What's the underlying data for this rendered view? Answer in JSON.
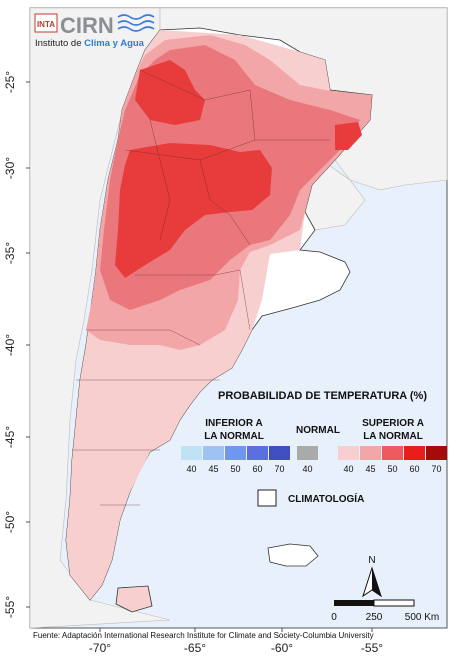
{
  "logo": {
    "inta": "INTA",
    "cirn": "CIRN",
    "subtitle_prefix": "Instituto de ",
    "subtitle_highlight": "Clima y Agua"
  },
  "axes": {
    "lat_labels": [
      "-25°",
      "-30°",
      "-35°",
      "-40°",
      "-45°",
      "-50°",
      "-55°"
    ],
    "lon_labels": [
      "-70°",
      "-65°",
      "-60°",
      "-55°"
    ]
  },
  "legend": {
    "title": "PROBABILIDAD DE TEMPERATURA (%)",
    "lower": {
      "label_line1": "INFERIOR A",
      "label_line2": "LA NORMAL",
      "values": [
        "40",
        "45",
        "50",
        "60",
        "70"
      ],
      "colors": [
        "#bfe3f5",
        "#9ec2f2",
        "#6f97ee",
        "#5a6fe0",
        "#3f4fc0"
      ]
    },
    "normal": {
      "label": "NORMAL",
      "value": "40",
      "color": "#aaaaaa"
    },
    "upper": {
      "label_line1": "SUPERIOR A",
      "label_line2": "LA NORMAL",
      "values": [
        "40",
        "45",
        "50",
        "60",
        "70"
      ],
      "colors": [
        "#f7cfcf",
        "#f3a6a8",
        "#ee5a5e",
        "#e81e1e",
        "#a50b0b"
      ]
    },
    "climatology": "CLIMATOLOGÍA"
  },
  "scale": {
    "labels": [
      "0",
      "250",
      "500 Km"
    ]
  },
  "north": "N",
  "source": "Fuente: Adaptación International Research Institute for Climate and Society-Columbia University",
  "colors": {
    "land": "#f2f2f2",
    "ocean": "#e8f0fb",
    "p40": "#f7cfcf",
    "p45": "#f3a6a8",
    "p50": "#e9777c",
    "p60": "#e83c3c"
  }
}
